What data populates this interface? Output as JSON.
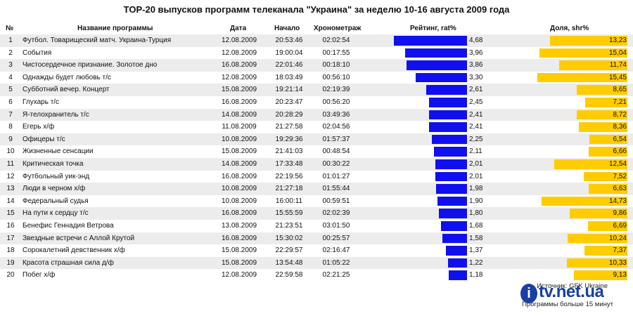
{
  "title": "TOP-20 выпусков программ телеканала \"Украина\" за неделю 10-16 августа 2009 года",
  "headers": {
    "num": "№",
    "name": "Название программы",
    "date": "Дата",
    "start": "Начало",
    "duration": "Хронометраж",
    "rating": "Рейтинг, rat%",
    "share": "Доля, shr%"
  },
  "colors": {
    "rating_bar": "#1010ee",
    "share_bar": "#ffcc00",
    "row_stripe": "#ececec"
  },
  "rows": [
    {
      "num": "1",
      "name": "Футбол. Товарищеский матч. Украина-Турция",
      "date": "12.08.2009",
      "start": "20:53:46",
      "duration": "02:02:54",
      "rating": "4,68",
      "share": "13,23"
    },
    {
      "num": "2",
      "name": "События",
      "date": "12.08.2009",
      "start": "19:00:04",
      "duration": "00:17:55",
      "rating": "3,96",
      "share": "15,04"
    },
    {
      "num": "3",
      "name": "Чистосердечное признание. Золотое дно",
      "date": "16.08.2009",
      "start": "22:01:46",
      "duration": "00:18:10",
      "rating": "3,86",
      "share": "11,74"
    },
    {
      "num": "4",
      "name": "Однажды будет любовь т/с",
      "date": "12.08.2009",
      "start": "18:03:49",
      "duration": "00:56:10",
      "rating": "3,30",
      "share": "15,45"
    },
    {
      "num": "5",
      "name": "Субботний вечер. Концерт",
      "date": "15.08.2009",
      "start": "19:21:14",
      "duration": "02:19:39",
      "rating": "2,61",
      "share": "8,65"
    },
    {
      "num": "6",
      "name": "Глухарь т/с",
      "date": "16.08.2009",
      "start": "20:23:47",
      "duration": "00:56:20",
      "rating": "2,45",
      "share": "7,21"
    },
    {
      "num": "7",
      "name": "Я-телохранитель т/с",
      "date": "14.08.2009",
      "start": "20:28:29",
      "duration": "03:49:36",
      "rating": "2,41",
      "share": "8,72"
    },
    {
      "num": "8",
      "name": "Егерь х/ф",
      "date": "11.08.2009",
      "start": "21:27:58",
      "duration": "02:04:56",
      "rating": "2,41",
      "share": "8,36"
    },
    {
      "num": "9",
      "name": "Офицеры т/с",
      "date": "10.08.2009",
      "start": "19:29:36",
      "duration": "01:57:37",
      "rating": "2,25",
      "share": "6,54"
    },
    {
      "num": "10",
      "name": "Жизненные сенсации",
      "date": "15.08.2009",
      "start": "21:41:03",
      "duration": "00:48:54",
      "rating": "2,11",
      "share": "6,66"
    },
    {
      "num": "11",
      "name": "Критическая точка",
      "date": "14.08.2009",
      "start": "17:33:48",
      "duration": "00:30:22",
      "rating": "2,01",
      "share": "12,54"
    },
    {
      "num": "12",
      "name": "Футбольный уик-энд",
      "date": "16.08.2009",
      "start": "22:19:56",
      "duration": "01:01:27",
      "rating": "2,01",
      "share": "7,52"
    },
    {
      "num": "13",
      "name": "Люди в черном х/ф",
      "date": "10.08.2009",
      "start": "21:27:18",
      "duration": "01:55:44",
      "rating": "1,98",
      "share": "6,63"
    },
    {
      "num": "14",
      "name": "Федеральный судья",
      "date": "10.08.2009",
      "start": "16:00:11",
      "duration": "00:59:51",
      "rating": "1,90",
      "share": "14,73"
    },
    {
      "num": "15",
      "name": "На пути к сердцу т/с",
      "date": "16.08.2009",
      "start": "15:55:59",
      "duration": "02:02:39",
      "rating": "1,80",
      "share": "9,86"
    },
    {
      "num": "16",
      "name": "Бенефис Геннадия Ветрова",
      "date": "13.08.2009",
      "start": "21:23:51",
      "duration": "03:01:50",
      "rating": "1,68",
      "share": "6,69"
    },
    {
      "num": "17",
      "name": "Звездные встречи с Аллой Крутой",
      "date": "16.08.2009",
      "start": "15:30:02",
      "duration": "00:25:57",
      "rating": "1,58",
      "share": "10,24"
    },
    {
      "num": "18",
      "name": "Сорокалетний девственник х/ф",
      "date": "15.08.2009",
      "start": "22:29:57",
      "duration": "02:16:47",
      "rating": "1,37",
      "share": "7,37"
    },
    {
      "num": "19",
      "name": "Красота страшная сила д/ф",
      "date": "15.08.2009",
      "start": "13:54:48",
      "duration": "01:05:22",
      "rating": "1,22",
      "share": "10,33"
    },
    {
      "num": "20",
      "name": "Побег х/ф",
      "date": "12.08.2009",
      "start": "22:59:58",
      "duration": "02:21:25",
      "rating": "1,18",
      "share": "9,13"
    }
  ],
  "chart_data": {
    "type": "table",
    "categories": [
      "Футбол. Товарищеский матч. Украина-Турция",
      "События",
      "Чистосердечное признание. Золотое дно",
      "Однажды будет любовь т/с",
      "Субботний вечер. Концерт",
      "Глухарь т/с",
      "Я-телохранитель т/с",
      "Егерь х/ф",
      "Офицеры т/с",
      "Жизненные сенсации",
      "Критическая точка",
      "Футбольный уик-энд",
      "Люди в черном х/ф",
      "Федеральный судья",
      "На пути к сердцу т/с",
      "Бенефис Геннадия Ветрова",
      "Звездные встречи с Аллой Крутой",
      "Сорокалетний девственник х/ф",
      "Красота страшная сила д/ф",
      "Побег х/ф"
    ],
    "series": [
      {
        "name": "Рейтинг, rat%",
        "values": [
          4.68,
          3.96,
          3.86,
          3.3,
          2.61,
          2.45,
          2.41,
          2.41,
          2.25,
          2.11,
          2.01,
          2.01,
          1.98,
          1.9,
          1.8,
          1.68,
          1.58,
          1.37,
          1.22,
          1.18
        ]
      },
      {
        "name": "Доля, shr%",
        "values": [
          13.23,
          15.04,
          11.74,
          15.45,
          8.65,
          7.21,
          8.72,
          8.36,
          6.54,
          6.66,
          12.54,
          7.52,
          6.63,
          14.73,
          9.86,
          6.69,
          10.24,
          7.37,
          10.33,
          9.13
        ]
      }
    ],
    "bar_alignment": "right-aligned to value column"
  },
  "source_line": "Источник: GFK Ukraine",
  "note_line": "Программы больше 15 минут",
  "logo_text": "tv.net.ua",
  "logo_letter": "i"
}
